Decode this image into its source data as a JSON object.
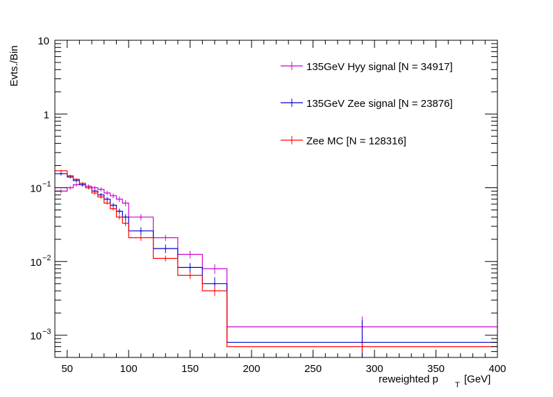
{
  "chart_data": {
    "type": "line",
    "style": "step-histogram",
    "ylabel": "Evts./Bin",
    "xlabel_main": "reweighted p",
    "xlabel_sub": "T",
    "xlabel_unit": "[GeV]",
    "xlim": [
      40,
      400
    ],
    "ylim": [
      0.0005,
      10
    ],
    "yscale": "log",
    "grid": false,
    "legend_position": "top-right",
    "x_ticks": [
      "50",
      "100",
      "150",
      "200",
      "250",
      "300",
      "350",
      "400"
    ],
    "y_ticks": [
      {
        "value": 10,
        "base": "10",
        "exp": ""
      },
      {
        "value": 1,
        "base": "1",
        "exp": ""
      },
      {
        "value": 0.1,
        "base": "10",
        "exp": "−1"
      },
      {
        "value": 0.01,
        "base": "10",
        "exp": "−2"
      },
      {
        "value": 0.001,
        "base": "10",
        "exp": "−3"
      }
    ],
    "series": [
      {
        "name": "135GeV Hyy signal [N = 34917]",
        "color": "#cc00cc",
        "edges": [
          40,
          50,
          55,
          60,
          65,
          70,
          75,
          80,
          85,
          90,
          95,
          100,
          120,
          140,
          160,
          180,
          400
        ],
        "values": [
          0.09,
          0.1,
          0.11,
          0.11,
          0.105,
          0.1,
          0.095,
          0.085,
          0.078,
          0.07,
          0.062,
          0.04,
          0.021,
          0.0125,
          0.008,
          0.0013
        ],
        "errors": [
          0.006,
          0.006,
          0.006,
          0.006,
          0.006,
          0.006,
          0.006,
          0.006,
          0.006,
          0.006,
          0.006,
          0.004,
          0.002,
          0.0015,
          0.0012,
          0.0005
        ]
      },
      {
        "name": "135GeV Zee signal [N = 23876]",
        "color": "#0000cc",
        "edges": [
          40,
          50,
          55,
          60,
          65,
          70,
          75,
          80,
          85,
          90,
          95,
          100,
          120,
          140,
          160,
          180,
          400
        ],
        "values": [
          0.155,
          0.14,
          0.125,
          0.11,
          0.1,
          0.09,
          0.08,
          0.07,
          0.058,
          0.048,
          0.04,
          0.026,
          0.015,
          0.0083,
          0.005,
          0.0008
        ],
        "errors": [
          0.008,
          0.006,
          0.006,
          0.006,
          0.005,
          0.005,
          0.005,
          0.005,
          0.004,
          0.004,
          0.004,
          0.003,
          0.002,
          0.0012,
          0.0011,
          0.0008
        ]
      },
      {
        "name": "Zee MC [N = 128316]",
        "color": "#ff0000",
        "edges": [
          40,
          50,
          55,
          60,
          65,
          70,
          75,
          80,
          85,
          90,
          95,
          100,
          120,
          140,
          160,
          180,
          400
        ],
        "values": [
          0.17,
          0.145,
          0.13,
          0.115,
          0.1,
          0.085,
          0.075,
          0.062,
          0.052,
          0.04,
          0.033,
          0.021,
          0.011,
          0.0065,
          0.004,
          0.0007
        ],
        "errors": [
          0.006,
          0.005,
          0.005,
          0.004,
          0.004,
          0.004,
          0.004,
          0.003,
          0.003,
          0.003,
          0.003,
          0.002,
          0.001,
          0.0007,
          0.0006,
          0.0001
        ]
      }
    ]
  }
}
